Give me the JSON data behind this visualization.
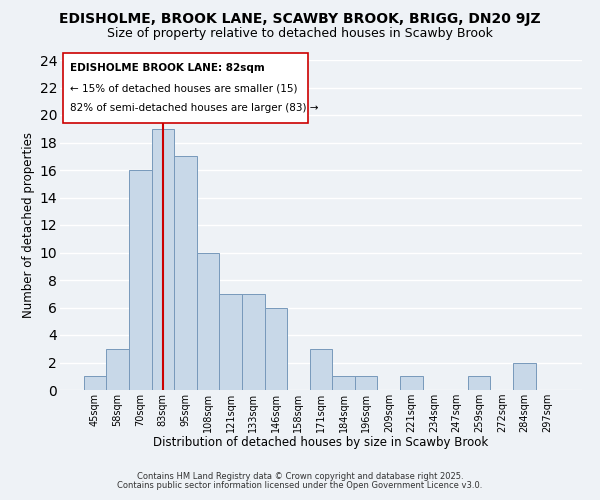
{
  "title": "EDISHOLME, BROOK LANE, SCAWBY BROOK, BRIGG, DN20 9JZ",
  "subtitle": "Size of property relative to detached houses in Scawby Brook",
  "xlabel": "Distribution of detached houses by size in Scawby Brook",
  "ylabel": "Number of detached properties",
  "bar_labels": [
    "45sqm",
    "58sqm",
    "70sqm",
    "83sqm",
    "95sqm",
    "108sqm",
    "121sqm",
    "133sqm",
    "146sqm",
    "158sqm",
    "171sqm",
    "184sqm",
    "196sqm",
    "209sqm",
    "221sqm",
    "234sqm",
    "247sqm",
    "259sqm",
    "272sqm",
    "284sqm",
    "297sqm"
  ],
  "bar_values": [
    1,
    3,
    16,
    19,
    17,
    10,
    7,
    7,
    6,
    0,
    3,
    1,
    1,
    0,
    1,
    0,
    0,
    1,
    0,
    2,
    0
  ],
  "bar_color": "#c8d8e8",
  "bar_edge_color": "#7799bb",
  "ylim": [
    0,
    24
  ],
  "yticks": [
    0,
    2,
    4,
    6,
    8,
    10,
    12,
    14,
    16,
    18,
    20,
    22,
    24
  ],
  "vline_x_index": 3,
  "vline_color": "#cc0000",
  "annotation_title": "EDISHOLME BROOK LANE: 82sqm",
  "annotation_line1": "← 15% of detached houses are smaller (15)",
  "annotation_line2": "82% of semi-detached houses are larger (83) →",
  "footer1": "Contains HM Land Registry data © Crown copyright and database right 2025.",
  "footer2": "Contains public sector information licensed under the Open Government Licence v3.0.",
  "background_color": "#eef2f6",
  "plot_background_color": "#eef2f6",
  "grid_color": "#ffffff",
  "title_fontsize": 10,
  "subtitle_fontsize": 9,
  "axis_label_fontsize": 8.5,
  "tick_fontsize": 7,
  "annotation_fontsize": 7.5,
  "footer_fontsize": 6
}
